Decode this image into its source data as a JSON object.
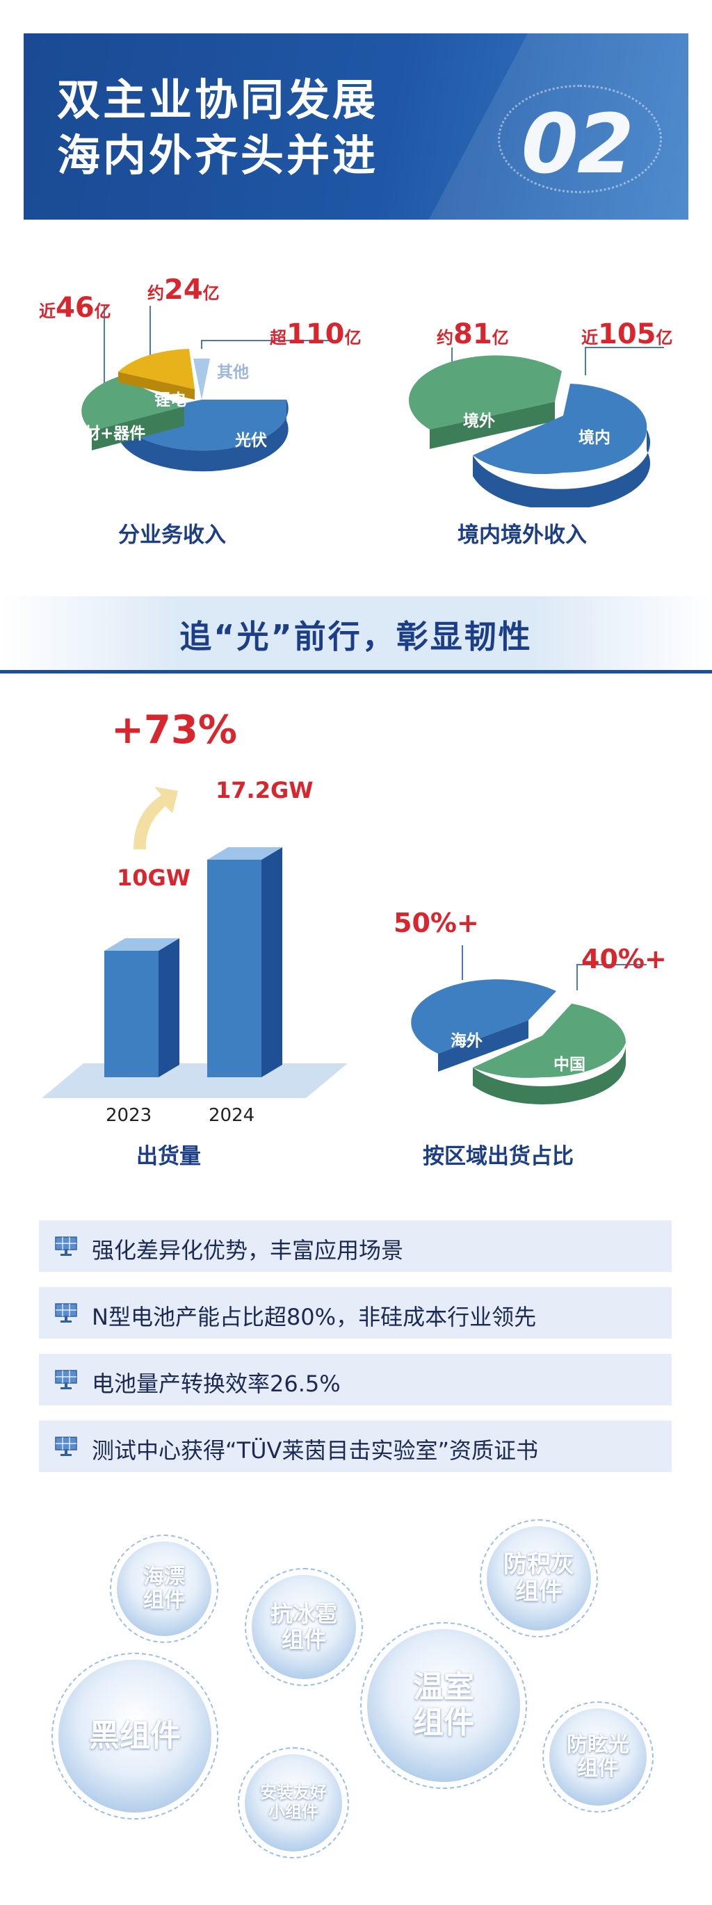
{
  "header": {
    "title_line1": "双主业协同发展",
    "title_line2": "海内外齐头并进",
    "number": "02"
  },
  "pie_business": {
    "caption": "分业务收入",
    "labels": {
      "cizai_prefix": "近",
      "cizai_value": "46",
      "cizai_unit": "亿",
      "lidian_prefix": "约",
      "lidian_value": "24",
      "lidian_unit": "亿",
      "guangfu_prefix": "超",
      "guangfu_value": "110",
      "guangfu_unit": "亿",
      "qita": "其他"
    },
    "slices": {
      "guangfu": "光伏",
      "cizai": "磁材+器件",
      "lidian": "锂电"
    }
  },
  "pie_region_revenue": {
    "caption": "境内境外收入",
    "labels": {
      "jingwai_prefix": "约",
      "jingwai_value": "81",
      "jingwai_unit": "亿",
      "jingnei_prefix": "近",
      "jingnei_value": "105",
      "jingnei_unit": "亿"
    },
    "slices": {
      "jingwai": "境外",
      "jingnei": "境内"
    }
  },
  "section": {
    "title": "追“光”前行，彰显韧性"
  },
  "shipment": {
    "caption": "出货量",
    "growth": "+73%",
    "bars": [
      {
        "year": "2023",
        "label": "10GW"
      },
      {
        "year": "2024",
        "label": "17.2GW"
      }
    ]
  },
  "pie_shipment_region": {
    "caption": "按区域出货占比",
    "overseas_value": "50%+",
    "china_value": "40%+",
    "slices": {
      "haiwai": "海外",
      "zhongguo": "中国"
    }
  },
  "features": [
    "强化差异化优势，丰富应用场景",
    "N型电池产能占比超80%，非硅成本行业领先",
    "电池量产转换效率26.5%",
    "测试中心获得“TÜV莱茵目击实验室”资质证书"
  ],
  "products": [
    "海漂\n组件",
    "抗冰雹\n组件",
    "防积灰\n组件",
    "黑组件",
    "温室\n组件",
    "防眩光\n组件",
    "安装友好\n小组件"
  ],
  "colors": {
    "brand_blue": "#1f57a6",
    "pv_blue": "#3d7fc0",
    "green": "#5ba57a",
    "gold": "#e8b21a",
    "red": "#d7262e"
  },
  "chart_data": [
    {
      "type": "pie",
      "title": "分业务收入",
      "unit": "亿",
      "slices": [
        {
          "name": "光伏",
          "value": 110
        },
        {
          "name": "磁材+器件",
          "value": 46
        },
        {
          "name": "锂电",
          "value": 24
        },
        {
          "name": "其他",
          "value": null
        }
      ]
    },
    {
      "type": "pie",
      "title": "境内境外收入",
      "unit": "亿",
      "slices": [
        {
          "name": "境内",
          "value": 105
        },
        {
          "name": "境外",
          "value": 81
        }
      ]
    },
    {
      "type": "bar",
      "title": "出货量",
      "categories": [
        "2023",
        "2024"
      ],
      "values": [
        10,
        17.2
      ],
      "unit": "GW",
      "annotation": "+73%"
    },
    {
      "type": "pie",
      "title": "按区域出货占比",
      "unit": "%",
      "slices": [
        {
          "name": "海外",
          "value": 50
        },
        {
          "name": "中国",
          "value": 40
        }
      ]
    }
  ]
}
